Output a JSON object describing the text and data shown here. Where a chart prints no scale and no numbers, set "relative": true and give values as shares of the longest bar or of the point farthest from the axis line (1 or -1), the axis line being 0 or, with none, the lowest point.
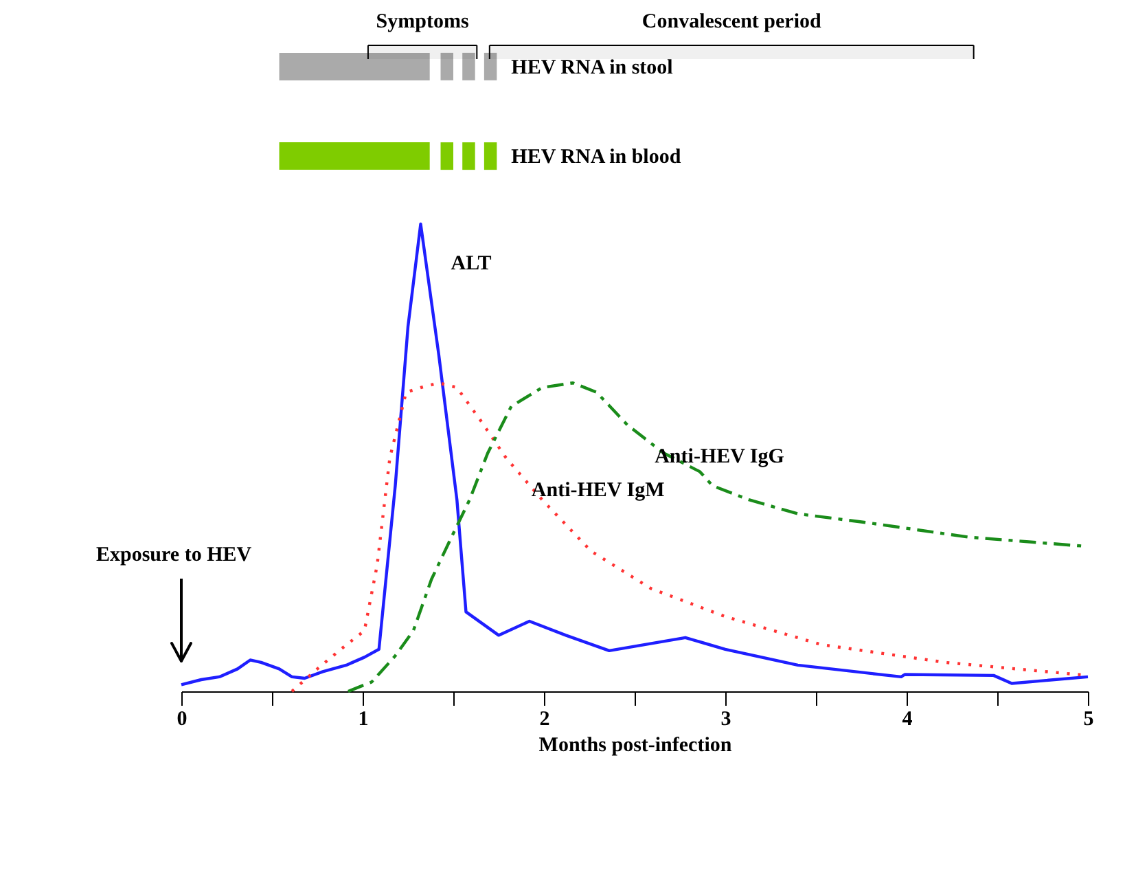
{
  "chart_data": [
    {
      "type": "bar",
      "orientation": "horizontal",
      "categories": [
        "HEV RNA in stool",
        "HEV RNA in blood"
      ],
      "xlim": [
        0,
        5
      ],
      "tick_labels": "y",
      "series": [
        {
          "colors": [
            "#aaaaaa",
            "#7fcc00"
          ],
          "base": [
            0.54,
            0.54
          ],
          "values": [
            0.83,
            0.83
          ]
        },
        {
          "colors": [
            "#aaaaaa",
            "#7fcc00"
          ],
          "base": [
            1.43,
            1.43
          ],
          "values": [
            0.07,
            0.07
          ]
        },
        {
          "colors": [
            "#aaaaaa",
            "#7fcc00"
          ],
          "base": [
            1.55,
            1.55
          ],
          "values": [
            0.07,
            0.07
          ]
        },
        {
          "colors": [
            "#aaaaaa",
            "#7fcc00"
          ],
          "base": [
            1.67,
            1.67
          ],
          "values": [
            0.07,
            0.07
          ]
        }
      ],
      "bands": [
        {
          "axis": "x",
          "from": 1.03,
          "to": 1.63,
          "label": "Symptoms",
          "color": "#000000"
        },
        {
          "axis": "x",
          "from": 1.7,
          "to": 4.37,
          "label": "Convalescent period",
          "color": "#000000"
        }
      ]
    },
    {
      "type": "line",
      "relative": true,
      "xlabel": "Months post-infection",
      "xlim": [
        0,
        5
      ],
      "xticks": [
        0,
        {
          "value": 0.5,
          "label": null
        },
        1,
        {
          "value": 1.5,
          "label": null
        },
        2,
        {
          "value": 2.5,
          "label": null
        },
        3,
        {
          "value": 3.5,
          "label": null
        },
        4,
        {
          "value": 4.5,
          "label": null
        },
        5
      ],
      "grid": false,
      "annotations": [
        "Exposure to HEV"
      ],
      "series": [
        {
          "name": "ALT",
          "color": "#1f1fff",
          "line_style": "solid",
          "x": [
            0,
            0.11,
            0.21,
            0.31,
            0.38,
            0.44,
            0.54,
            0.61,
            0.68,
            0.78,
            0.91,
            1.01,
            1.09,
            1.18,
            1.25,
            1.32,
            1.42,
            1.52,
            1.57,
            1.75,
            1.92,
            2.12,
            2.36,
            2.78,
            3.0,
            3.4,
            3.97,
            3.99,
            4.48,
            4.58,
            5.0
          ],
          "values": [
            0.014,
            0.025,
            0.031,
            0.048,
            0.067,
            0.062,
            0.048,
            0.031,
            0.028,
            0.042,
            0.056,
            0.073,
            0.09,
            0.44,
            0.78,
            1,
            0.72,
            0.41,
            0.17,
            0.12,
            0.15,
            0.12,
            0.087,
            0.115,
            0.09,
            0.056,
            0.031,
            0.036,
            0.034,
            0.017,
            0.031
          ]
        },
        {
          "name": "Anti-HEV IgM",
          "color": "#ff3333",
          "line_style": "dotted",
          "x": [
            0.61,
            0.75,
            0.88,
            1.01,
            1.08,
            1.15,
            1.24,
            1.32,
            1.42,
            1.52,
            1.65,
            1.79,
            1.99,
            2.26,
            2.59,
            3.0,
            3.53,
            4.21,
            5.0
          ],
          "values": [
            0,
            0.048,
            0.09,
            0.13,
            0.27,
            0.5,
            0.64,
            0.65,
            0.66,
            0.65,
            0.58,
            0.5,
            0.41,
            0.3,
            0.22,
            0.16,
            0.1,
            0.062,
            0.034
          ]
        },
        {
          "name": "Anti-HEV IgG",
          "color": "#1a8c1a",
          "line_style": "dashed",
          "x": [
            0.92,
            1.05,
            1.18,
            1.28,
            1.38,
            1.49,
            1.59,
            1.69,
            1.82,
            1.99,
            2.16,
            2.29,
            2.46,
            2.66,
            2.86,
            2.93,
            3.13,
            3.4,
            3.8,
            4.34,
            5.0
          ],
          "values": [
            0,
            0.02,
            0.076,
            0.13,
            0.24,
            0.33,
            0.41,
            0.51,
            0.61,
            0.65,
            0.66,
            0.64,
            0.57,
            0.51,
            0.47,
            0.44,
            0.41,
            0.38,
            0.36,
            0.33,
            0.31
          ]
        }
      ]
    }
  ]
}
